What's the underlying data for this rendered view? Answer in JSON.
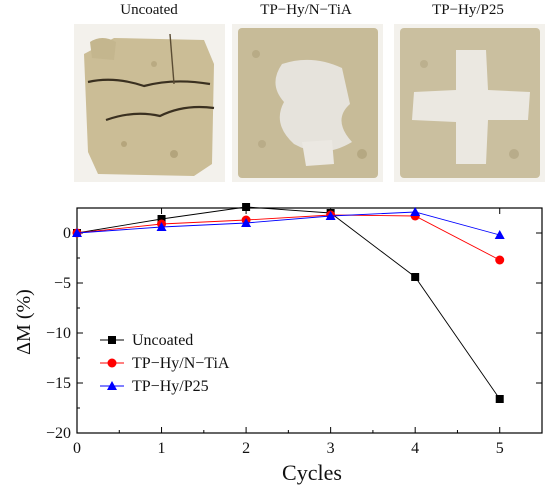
{
  "photos": [
    {
      "label": "Uncoated",
      "sample_color": "#cbbd96",
      "state": "cracked"
    },
    {
      "label": "TP−Hy/N−TiA",
      "sample_color": "#c7bb98",
      "state": "white patch"
    },
    {
      "label": "TP−Hy/P25",
      "sample_color": "#cabf9f",
      "state": "white cross"
    }
  ],
  "chart_data": {
    "type": "line",
    "xlabel": "Cycles",
    "ylabel": "ΔM (%)",
    "x": [
      0,
      1,
      2,
      3,
      4,
      5
    ],
    "xlim": [
      0,
      5.5
    ],
    "ylim": [
      -20,
      2.5
    ],
    "xticks": [
      "0",
      "1",
      "2",
      "3",
      "4",
      "5"
    ],
    "yticks": [
      "0",
      "-5",
      "-10",
      "-15",
      "-20"
    ],
    "legend_position": "bottom-left",
    "series": [
      {
        "name": "Uncoated",
        "color": "#000000",
        "marker": "square",
        "values": [
          0,
          1.4,
          2.6,
          2.0,
          -4.4,
          -16.6
        ]
      },
      {
        "name": "TP−Hy/N−TiA",
        "color": "#ff0000",
        "marker": "circle",
        "values": [
          0,
          0.9,
          1.3,
          1.8,
          1.7,
          -2.7
        ]
      },
      {
        "name": "TP−Hy/P25",
        "color": "#0000ff",
        "marker": "triangle",
        "values": [
          0,
          0.6,
          1.0,
          1.7,
          2.1,
          -0.2
        ]
      }
    ]
  }
}
